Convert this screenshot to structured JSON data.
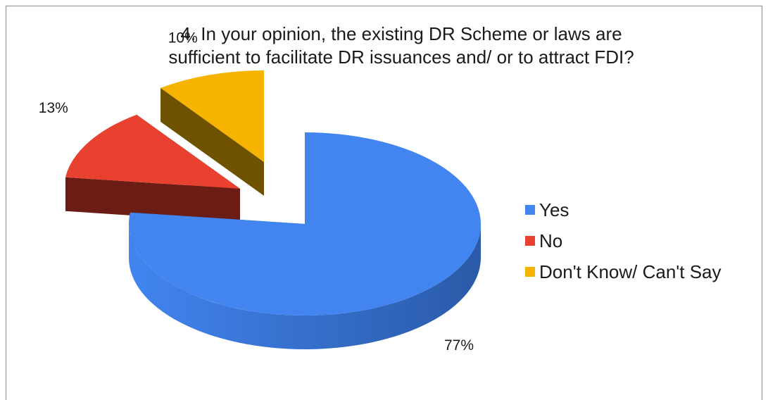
{
  "chart_data": {
    "type": "pie",
    "title": "4. In your opinion, the existing DR Scheme or laws are sufficient to facilitate DR issuances and/ or to attract FDI?",
    "title_lines": [
      "4. In your opinion, the existing DR Scheme or laws are",
      "sufficient to facilitate DR issuances and/ or to attract FDI?"
    ],
    "slices": [
      {
        "label": "Yes",
        "value": 77,
        "display": "77%",
        "color": "#4285f0",
        "side_color": "#2a5aa8"
      },
      {
        "label": "No",
        "value": 13,
        "display": "13%",
        "color": "#e8412f",
        "side_color": "#6b1c14"
      },
      {
        "label": "Don't Know/ Can't Say",
        "value": 10,
        "display": "10%",
        "color": "#f6b400",
        "side_color": "#6e5200"
      }
    ],
    "legend_position": "right",
    "exploded": true,
    "style": "3d"
  }
}
